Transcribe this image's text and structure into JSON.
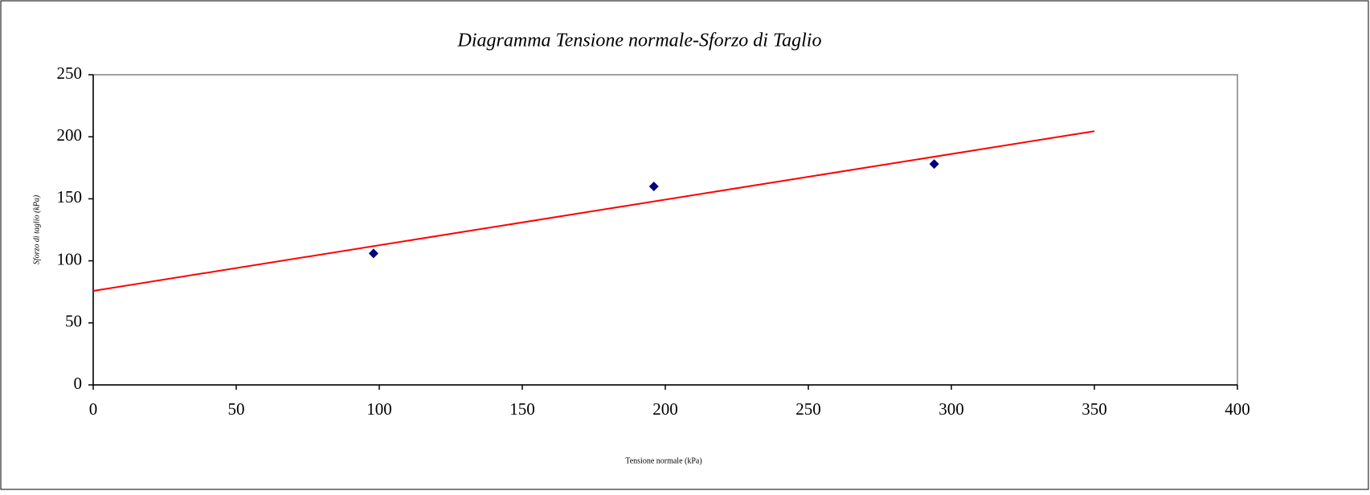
{
  "chart_data": {
    "type": "scatter",
    "title": "Diagramma Tensione normale-Sforzo di Taglio",
    "x_label": "Tensione normale (kPa)",
    "y_label": "Sforzo di taglio (kPa)",
    "series": [
      {
        "x": [
          98,
          196,
          294
        ],
        "values": [
          106,
          160,
          178
        ],
        "color": "#000080"
      }
    ],
    "trendline": {
      "x": [
        0,
        350
      ],
      "values": [
        75.8,
        204.5
      ],
      "color": "#ff0000"
    },
    "xlim": [
      0,
      400
    ],
    "xticks": [
      0,
      50,
      100,
      150,
      200,
      250,
      300,
      350,
      400
    ],
    "ylim": [
      0,
      250
    ],
    "yticks": [
      0,
      50,
      100,
      150,
      200,
      250
    ],
    "grid": false
  }
}
